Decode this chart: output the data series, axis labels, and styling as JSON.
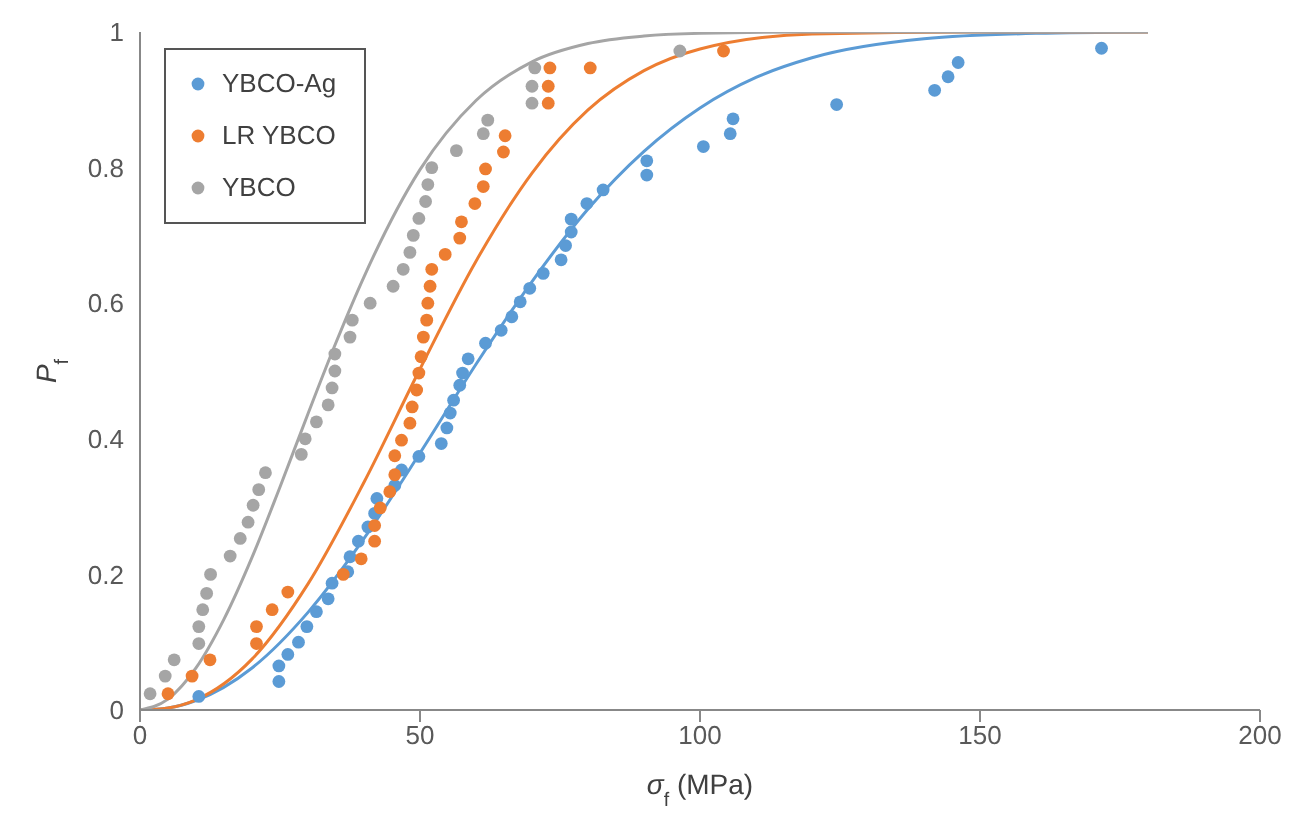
{
  "chart_data": {
    "type": "scatter",
    "xlabel": "σ$_{f}$ (MPa)",
    "ylabel": "P$_{f}$",
    "xlim": [
      0,
      200
    ],
    "xticks": [
      0,
      50,
      100,
      150,
      200
    ],
    "ylim": [
      0,
      1
    ],
    "yticks": [
      0,
      0.2,
      0.4,
      0.6,
      0.8,
      1
    ],
    "grid": false,
    "legend": "top left",
    "marker": "circle",
    "series": [
      {
        "name": "YBCO-Ag",
        "color": "#5b9bd5",
        "x": [
          10.5,
          24.8,
          24.8,
          26.4,
          28.3,
          29.8,
          31.5,
          33.6,
          34.3,
          37.1,
          37.5,
          39,
          40.7,
          41.9,
          42.3,
          45.5,
          46.7,
          49.8,
          53.8,
          54.8,
          55.4,
          56,
          57.1,
          57.6,
          58.6,
          61.7,
          64.5,
          66.4,
          67.9,
          69.6,
          72,
          75.2,
          76,
          77,
          77,
          79.8,
          82.7,
          90.5,
          90.5,
          100.6,
          105.4,
          105.9,
          124.4,
          141.9,
          144.3,
          146.1,
          171.7
        ],
        "values": [
          0.02,
          0.042,
          0.065,
          0.082,
          0.1,
          0.123,
          0.145,
          0.164,
          0.187,
          0.204,
          0.226,
          0.249,
          0.27,
          0.29,
          0.312,
          0.331,
          0.354,
          0.374,
          0.393,
          0.416,
          0.438,
          0.457,
          0.479,
          0.497,
          0.518,
          0.541,
          0.56,
          0.58,
          0.602,
          0.622,
          0.644,
          0.664,
          0.685,
          0.705,
          0.724,
          0.747,
          0.767,
          0.789,
          0.81,
          0.831,
          0.85,
          0.872,
          0.893,
          0.914,
          0.934,
          0.955,
          0.976
        ]
      },
      {
        "name": "LR YBCO",
        "color": "#ed7d31",
        "x": [
          5,
          9.3,
          12.5,
          20.8,
          20.8,
          23.6,
          26.4,
          36.3,
          39.5,
          41.9,
          41.9,
          42.9,
          44.6,
          45.5,
          45.5,
          46.7,
          48.2,
          48.6,
          49.4,
          49.8,
          50.2,
          50.6,
          51.2,
          51.4,
          51.8,
          52.1,
          54.5,
          57.1,
          57.4,
          59.8,
          61.3,
          61.7,
          64.9,
          65.2,
          72.9,
          72.9,
          73.2,
          80.4,
          104.2
        ],
        "values": [
          0.024,
          0.05,
          0.074,
          0.098,
          0.123,
          0.148,
          0.174,
          0.2,
          0.223,
          0.249,
          0.272,
          0.298,
          0.322,
          0.347,
          0.375,
          0.398,
          0.423,
          0.447,
          0.472,
          0.497,
          0.521,
          0.55,
          0.575,
          0.6,
          0.625,
          0.65,
          0.672,
          0.696,
          0.72,
          0.747,
          0.772,
          0.798,
          0.823,
          0.847,
          0.895,
          0.92,
          0.947,
          0.947,
          0.972
        ]
      },
      {
        "name": "YBCO",
        "color": "#a5a5a5",
        "x": [
          1.8,
          4.5,
          6.1,
          10.5,
          10.5,
          11.2,
          11.9,
          12.6,
          16.1,
          17.9,
          19.3,
          20.2,
          21.2,
          22.4,
          28.8,
          29.5,
          31.5,
          33.6,
          34.3,
          34.8,
          34.8,
          37.5,
          37.9,
          41.1,
          45.2,
          47,
          48.2,
          48.8,
          49.8,
          51,
          51.4,
          52.1,
          56.5,
          61.3,
          62.1,
          70,
          70,
          70.5,
          96.4
        ],
        "values": [
          0.024,
          0.05,
          0.074,
          0.098,
          0.123,
          0.148,
          0.172,
          0.2,
          0.227,
          0.253,
          0.277,
          0.302,
          0.325,
          0.35,
          0.377,
          0.4,
          0.425,
          0.45,
          0.475,
          0.5,
          0.525,
          0.55,
          0.575,
          0.6,
          0.625,
          0.65,
          0.675,
          0.7,
          0.725,
          0.75,
          0.775,
          0.8,
          0.825,
          0.85,
          0.87,
          0.895,
          0.92,
          0.947,
          0.972
        ]
      },
      {
        "type": "line",
        "color": "#5b9bd5",
        "marker": "none",
        "x": [
          0,
          5,
          10,
          20,
          30,
          40,
          50,
          60,
          70,
          80,
          90,
          100,
          110,
          120,
          140,
          160,
          180
        ],
        "values": [
          0,
          0.003,
          0.014,
          0.062,
          0.144,
          0.253,
          0.379,
          0.51,
          0.632,
          0.739,
          0.824,
          0.888,
          0.933,
          0.962,
          0.99,
          0.998,
          1
        ]
      },
      {
        "type": "line",
        "color": "#ed7d31",
        "marker": "none",
        "x": [
          0,
          5,
          10,
          20,
          30,
          40,
          50,
          60,
          70,
          80,
          90,
          100,
          120,
          150,
          180
        ],
        "values": [
          0,
          0.003,
          0.015,
          0.075,
          0.186,
          0.336,
          0.503,
          0.662,
          0.792,
          0.885,
          0.943,
          0.975,
          0.997,
          1,
          1
        ]
      },
      {
        "type": "line",
        "color": "#a5a5a5",
        "marker": "none",
        "x": [
          0,
          5,
          10,
          15,
          20,
          25,
          30,
          35,
          40,
          50,
          60,
          70,
          80,
          90,
          100,
          120,
          150,
          180
        ],
        "values": [
          0,
          0.016,
          0.062,
          0.134,
          0.225,
          0.329,
          0.437,
          0.542,
          0.639,
          0.797,
          0.899,
          0.956,
          0.983,
          0.994,
          0.998,
          1,
          1,
          1
        ]
      }
    ]
  }
}
